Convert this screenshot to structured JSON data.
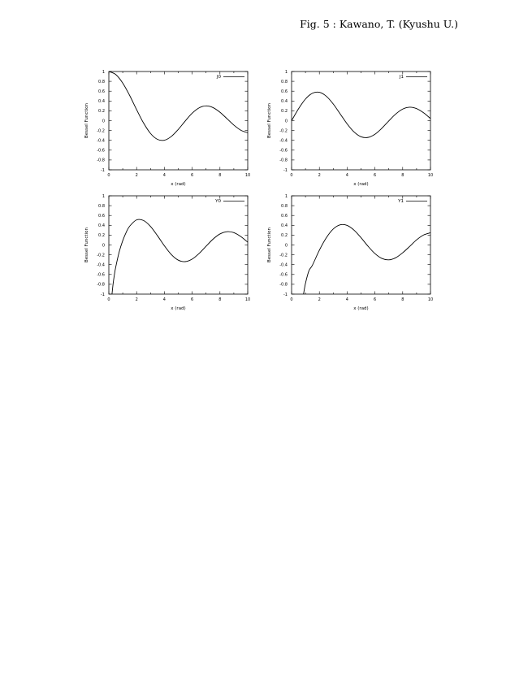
{
  "caption": "Fig. 5 :  Kawano, T. (Kyushu U.)",
  "colors": {
    "line": "#000000",
    "background": "#ffffff"
  },
  "chart_data": [
    {
      "type": "line",
      "legend_label": "J0",
      "xlabel": "x (rad)",
      "ylabel": "Bessel Function",
      "xlim": [
        0,
        10
      ],
      "ylim": [
        -1,
        1
      ],
      "xticks": [
        0,
        2,
        4,
        6,
        8,
        10
      ],
      "xtick_labels": [
        "0",
        "2",
        "4",
        "6",
        "8",
        "10"
      ],
      "yticks": [
        -1,
        -0.8,
        -0.6,
        -0.4,
        -0.2,
        0,
        0.2,
        0.4,
        0.6,
        0.8,
        1
      ],
      "ytick_labels": [
        "-1",
        "-0.8",
        "-0.6",
        "-0.4",
        "-0.2",
        "0",
        "0.2",
        "0.4",
        "0.6",
        "0.8",
        "1"
      ],
      "legend_position": "top-right",
      "x": [
        0,
        0.5,
        1,
        1.5,
        2,
        2.5,
        3,
        3.5,
        4,
        4.5,
        5,
        5.5,
        6,
        6.5,
        7,
        7.5,
        8,
        8.5,
        9,
        9.5,
        10
      ],
      "y": [
        1.0,
        0.938,
        0.765,
        0.512,
        0.224,
        -0.048,
        -0.26,
        -0.38,
        -0.397,
        -0.321,
        -0.178,
        -0.007,
        0.151,
        0.26,
        0.3,
        0.266,
        0.172,
        0.042,
        -0.09,
        -0.194,
        -0.246
      ]
    },
    {
      "type": "line",
      "legend_label": "J1",
      "xlabel": "x (rad)",
      "ylabel": "Bessel Function",
      "xlim": [
        0,
        10
      ],
      "ylim": [
        -1,
        1
      ],
      "xticks": [
        0,
        2,
        4,
        6,
        8,
        10
      ],
      "xtick_labels": [
        "0",
        "2",
        "4",
        "6",
        "8",
        "10"
      ],
      "yticks": [
        -1,
        -0.8,
        -0.6,
        -0.4,
        -0.2,
        0,
        0.2,
        0.4,
        0.6,
        0.8,
        1
      ],
      "ytick_labels": [
        "-1",
        "-0.8",
        "-0.6",
        "-0.4",
        "-0.2",
        "0",
        "0.2",
        "0.4",
        "0.6",
        "0.8",
        "1"
      ],
      "legend_position": "top-right",
      "x": [
        0,
        0.5,
        1,
        1.5,
        2,
        2.5,
        3,
        3.5,
        4,
        4.5,
        5,
        5.5,
        6,
        6.5,
        7,
        7.5,
        8,
        8.5,
        9,
        9.5,
        10
      ],
      "y": [
        0.0,
        0.242,
        0.44,
        0.558,
        0.577,
        0.497,
        0.339,
        0.137,
        -0.066,
        -0.231,
        -0.328,
        -0.341,
        -0.277,
        -0.154,
        -0.005,
        0.135,
        0.235,
        0.273,
        0.245,
        0.161,
        0.043
      ]
    },
    {
      "type": "line",
      "legend_label": "Y0",
      "xlabel": "x (rad)",
      "ylabel": "Bessel Function",
      "xlim": [
        0,
        10
      ],
      "ylim": [
        -1,
        1
      ],
      "xticks": [
        0,
        2,
        4,
        6,
        8,
        10
      ],
      "xtick_labels": [
        "0",
        "2",
        "4",
        "6",
        "8",
        "10"
      ],
      "yticks": [
        -1,
        -0.8,
        -0.6,
        -0.4,
        -0.2,
        0,
        0.2,
        0.4,
        0.6,
        0.8,
        1
      ],
      "ytick_labels": [
        "-1",
        "-0.8",
        "-0.6",
        "-0.4",
        "-0.2",
        "0",
        "0.2",
        "0.4",
        "0.6",
        "0.8",
        "1"
      ],
      "legend_position": "top-right",
      "x": [
        0.2,
        0.3,
        0.4,
        0.5,
        0.75,
        1,
        1.25,
        1.5,
        2,
        2.5,
        3,
        3.5,
        4,
        4.5,
        5,
        5.5,
        6,
        6.5,
        7,
        7.5,
        8,
        8.5,
        9,
        9.5,
        10
      ],
      "y": [
        -1.081,
        -0.807,
        -0.606,
        -0.445,
        -0.137,
        0.088,
        0.258,
        0.382,
        0.51,
        0.498,
        0.377,
        0.189,
        -0.017,
        -0.195,
        -0.309,
        -0.339,
        -0.288,
        -0.173,
        -0.026,
        0.118,
        0.224,
        0.27,
        0.251,
        0.171,
        0.056
      ]
    },
    {
      "type": "line",
      "legend_label": "Y1",
      "xlabel": "x (rad)",
      "ylabel": "Bessel Function",
      "xlim": [
        0,
        10
      ],
      "ylim": [
        -1,
        1
      ],
      "xticks": [
        0,
        2,
        4,
        6,
        8,
        10
      ],
      "xtick_labels": [
        "0",
        "2",
        "4",
        "6",
        "8",
        "10"
      ],
      "yticks": [
        -1,
        -0.8,
        -0.6,
        -0.4,
        -0.2,
        0,
        0.2,
        0.4,
        0.6,
        0.8,
        1
      ],
      "ytick_labels": [
        "-1",
        "-0.8",
        "-0.6",
        "-0.4",
        "-0.2",
        "0",
        "0.2",
        "0.4",
        "0.6",
        "0.8",
        "1"
      ],
      "legend_position": "top-right",
      "x": [
        0.86,
        1,
        1.25,
        1.5,
        2,
        2.5,
        3,
        3.5,
        4,
        4.5,
        5,
        5.5,
        6,
        6.5,
        7,
        7.5,
        8,
        8.5,
        9,
        9.5,
        10
      ],
      "y": [
        -1.0,
        -0.781,
        -0.524,
        -0.412,
        -0.107,
        0.146,
        0.325,
        0.41,
        0.398,
        0.301,
        0.148,
        -0.024,
        -0.175,
        -0.274,
        -0.303,
        -0.259,
        -0.158,
        -0.03,
        0.104,
        0.203,
        0.249
      ]
    }
  ]
}
